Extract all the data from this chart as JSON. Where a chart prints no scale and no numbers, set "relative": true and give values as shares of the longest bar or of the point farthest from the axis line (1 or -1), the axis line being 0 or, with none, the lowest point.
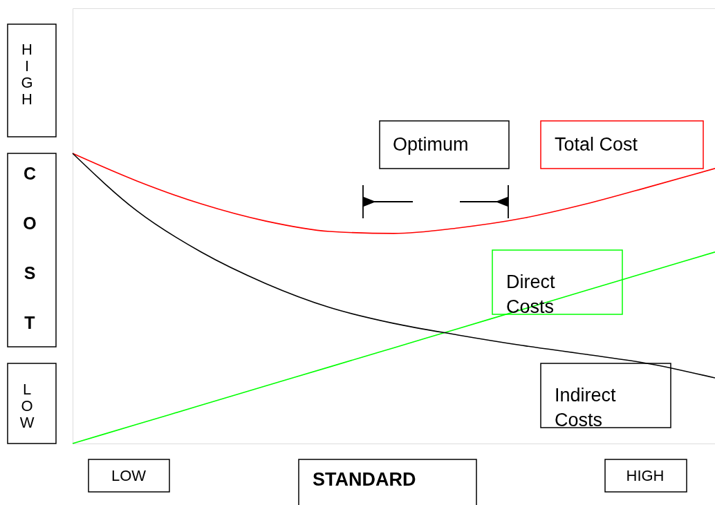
{
  "chart_data": {
    "type": "line",
    "relative": true,
    "xlabel": "STANDARD",
    "ylabel": "COST",
    "categories": [
      null,
      null,
      null,
      null,
      null,
      null,
      null,
      null,
      null,
      null,
      null
    ],
    "series": [
      {
        "name": "Total Cost",
        "color": "#ff0000",
        "values": [
          1.0,
          0.905,
          0.826,
          0.767,
          0.731,
          0.724,
          0.743,
          0.776,
          0.826,
          0.886,
          0.948
        ]
      },
      {
        "name": "Direct Costs",
        "color": "#00ff00",
        "values": [
          0.0,
          0.066,
          0.132,
          0.198,
          0.264,
          0.33,
          0.396,
          0.462,
          0.528,
          0.594,
          0.66
        ]
      },
      {
        "name": "Indirect Costs",
        "color": "#000000",
        "values": [
          1.0,
          0.802,
          0.66,
          0.552,
          0.469,
          0.414,
          0.374,
          0.338,
          0.307,
          0.274,
          0.226
        ]
      }
    ],
    "annotations": [
      "Optimum",
      "HIGH",
      "LOW",
      "LOW",
      "HIGH"
    ],
    "grid": false,
    "marker": "none",
    "line_style": "solid"
  }
}
